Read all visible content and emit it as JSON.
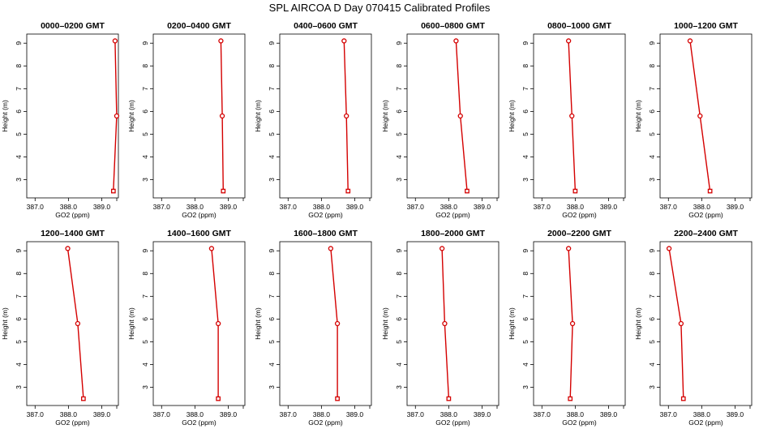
{
  "title": "SPL AIRCOA D  Day 070415  Calibrated Profiles",
  "series_color": "#d40000",
  "chart_data": [
    {
      "type": "line",
      "title": "0000–0200 GMT",
      "xlabel": "GO2 (ppm)",
      "ylabel": "Height (m)",
      "xlim": [
        386.75,
        389.5
      ],
      "ylim": [
        2.2,
        9.4
      ],
      "x_ticks": [
        387.0,
        388.0,
        389.0
      ],
      "x_tick_labels": [
        "387.0",
        "388.0",
        "389.0"
      ],
      "y_ticks": [
        3,
        4,
        5,
        6,
        7,
        8,
        9
      ],
      "y_tick_labels": [
        "3",
        "4",
        "5",
        "6",
        "7",
        "8",
        "9"
      ],
      "x": [
        389.35,
        389.45,
        389.4
      ],
      "y": [
        2.5,
        5.8,
        9.1
      ]
    },
    {
      "type": "line",
      "title": "0200–0400 GMT",
      "xlabel": "GO2 (ppm)",
      "ylabel": "Height (m)",
      "xlim": [
        386.75,
        389.5
      ],
      "ylim": [
        2.2,
        9.4
      ],
      "x_ticks": [
        387.0,
        388.0,
        389.0
      ],
      "x_tick_labels": [
        "387.0",
        "388.0",
        "389.0"
      ],
      "y_ticks": [
        3,
        4,
        5,
        6,
        7,
        8,
        9
      ],
      "y_tick_labels": [
        "3",
        "4",
        "5",
        "6",
        "7",
        "8",
        "9"
      ],
      "x": [
        388.85,
        388.82,
        388.78
      ],
      "y": [
        2.5,
        5.8,
        9.1
      ]
    },
    {
      "type": "line",
      "title": "0400–0600 GMT",
      "xlabel": "GO2 (ppm)",
      "ylabel": "Height (m)",
      "xlim": [
        386.75,
        389.5
      ],
      "ylim": [
        2.2,
        9.4
      ],
      "x_ticks": [
        387.0,
        388.0,
        389.0
      ],
      "x_tick_labels": [
        "387.0",
        "388.0",
        "389.0"
      ],
      "y_ticks": [
        3,
        4,
        5,
        6,
        7,
        8,
        9
      ],
      "y_tick_labels": [
        "3",
        "4",
        "5",
        "6",
        "7",
        "8",
        "9"
      ],
      "x": [
        388.8,
        388.75,
        388.68
      ],
      "y": [
        2.5,
        5.8,
        9.1
      ]
    },
    {
      "type": "line",
      "title": "0600–0800 GMT",
      "xlabel": "GO2 (ppm)",
      "ylabel": "Height (m)",
      "xlim": [
        386.75,
        389.5
      ],
      "ylim": [
        2.2,
        9.4
      ],
      "x_ticks": [
        387.0,
        388.0,
        389.0
      ],
      "x_tick_labels": [
        "387.0",
        "388.0",
        "389.0"
      ],
      "y_ticks": [
        3,
        4,
        5,
        6,
        7,
        8,
        9
      ],
      "y_tick_labels": [
        "3",
        "4",
        "5",
        "6",
        "7",
        "8",
        "9"
      ],
      "x": [
        388.55,
        388.35,
        388.22
      ],
      "y": [
        2.5,
        5.8,
        9.1
      ]
    },
    {
      "type": "line",
      "title": "0800–1000 GMT",
      "xlabel": "GO2 (ppm)",
      "ylabel": "Height (m)",
      "xlim": [
        386.75,
        389.5
      ],
      "ylim": [
        2.2,
        9.4
      ],
      "x_ticks": [
        387.0,
        388.0,
        389.0
      ],
      "x_tick_labels": [
        "387.0",
        "388.0",
        "389.0"
      ],
      "y_ticks": [
        3,
        4,
        5,
        6,
        7,
        8,
        9
      ],
      "y_tick_labels": [
        "3",
        "4",
        "5",
        "6",
        "7",
        "8",
        "9"
      ],
      "x": [
        388.0,
        387.9,
        387.8
      ],
      "y": [
        2.5,
        5.8,
        9.1
      ]
    },
    {
      "type": "line",
      "title": "1000–1200 GMT",
      "xlabel": "GO2 (ppm)",
      "ylabel": "Height (m)",
      "xlim": [
        386.75,
        389.5
      ],
      "ylim": [
        2.2,
        9.4
      ],
      "x_ticks": [
        387.0,
        388.0,
        389.0
      ],
      "x_tick_labels": [
        "387.0",
        "388.0",
        "389.0"
      ],
      "y_ticks": [
        3,
        4,
        5,
        6,
        7,
        8,
        9
      ],
      "y_tick_labels": [
        "3",
        "4",
        "5",
        "6",
        "7",
        "8",
        "9"
      ],
      "x": [
        388.25,
        387.95,
        387.65
      ],
      "y": [
        2.5,
        5.8,
        9.1
      ]
    },
    {
      "type": "line",
      "title": "1200–1400 GMT",
      "xlabel": "GO2 (ppm)",
      "ylabel": "Height (m)",
      "xlim": [
        386.75,
        389.5
      ],
      "ylim": [
        2.2,
        9.4
      ],
      "x_ticks": [
        387.0,
        388.0,
        389.0
      ],
      "x_tick_labels": [
        "387.0",
        "388.0",
        "389.0"
      ],
      "y_ticks": [
        3,
        4,
        5,
        6,
        7,
        8,
        9
      ],
      "y_tick_labels": [
        "3",
        "4",
        "5",
        "6",
        "7",
        "8",
        "9"
      ],
      "x": [
        388.45,
        388.28,
        387.98
      ],
      "y": [
        2.5,
        5.8,
        9.1
      ]
    },
    {
      "type": "line",
      "title": "1400–1600 GMT",
      "xlabel": "GO2 (ppm)",
      "ylabel": "Height (m)",
      "xlim": [
        386.75,
        389.5
      ],
      "ylim": [
        2.2,
        9.4
      ],
      "x_ticks": [
        387.0,
        388.0,
        389.0
      ],
      "x_tick_labels": [
        "387.0",
        "388.0",
        "389.0"
      ],
      "y_ticks": [
        3,
        4,
        5,
        6,
        7,
        8,
        9
      ],
      "y_tick_labels": [
        "3",
        "4",
        "5",
        "6",
        "7",
        "8",
        "9"
      ],
      "x": [
        388.7,
        388.7,
        388.5
      ],
      "y": [
        2.5,
        5.8,
        9.1
      ]
    },
    {
      "type": "line",
      "title": "1600–1800 GMT",
      "xlabel": "GO2 (ppm)",
      "ylabel": "Height (m)",
      "xlim": [
        386.75,
        389.5
      ],
      "ylim": [
        2.2,
        9.4
      ],
      "x_ticks": [
        387.0,
        388.0,
        389.0
      ],
      "x_tick_labels": [
        "387.0",
        "388.0",
        "389.0"
      ],
      "y_ticks": [
        3,
        4,
        5,
        6,
        7,
        8,
        9
      ],
      "y_tick_labels": [
        "3",
        "4",
        "5",
        "6",
        "7",
        "8",
        "9"
      ],
      "x": [
        388.48,
        388.48,
        388.28
      ],
      "y": [
        2.5,
        5.8,
        9.1
      ]
    },
    {
      "type": "line",
      "title": "1800–2000 GMT",
      "xlabel": "GO2 (ppm)",
      "ylabel": "Height (m)",
      "xlim": [
        386.75,
        389.5
      ],
      "ylim": [
        2.2,
        9.4
      ],
      "x_ticks": [
        387.0,
        388.0,
        389.0
      ],
      "x_tick_labels": [
        "387.0",
        "388.0",
        "389.0"
      ],
      "y_ticks": [
        3,
        4,
        5,
        6,
        7,
        8,
        9
      ],
      "y_tick_labels": [
        "3",
        "4",
        "5",
        "6",
        "7",
        "8",
        "9"
      ],
      "x": [
        388.0,
        387.88,
        387.8
      ],
      "y": [
        2.5,
        5.8,
        9.1
      ]
    },
    {
      "type": "line",
      "title": "2000–2200 GMT",
      "xlabel": "GO2 (ppm)",
      "ylabel": "Height (m)",
      "xlim": [
        386.75,
        389.5
      ],
      "ylim": [
        2.2,
        9.4
      ],
      "x_ticks": [
        387.0,
        388.0,
        389.0
      ],
      "x_tick_labels": [
        "387.0",
        "388.0",
        "389.0"
      ],
      "y_ticks": [
        3,
        4,
        5,
        6,
        7,
        8,
        9
      ],
      "y_tick_labels": [
        "3",
        "4",
        "5",
        "6",
        "7",
        "8",
        "9"
      ],
      "x": [
        387.85,
        387.92,
        387.8
      ],
      "y": [
        2.5,
        5.8,
        9.1
      ]
    },
    {
      "type": "line",
      "title": "2200–2400 GMT",
      "xlabel": "GO2 (ppm)",
      "ylabel": "Height (m)",
      "xlim": [
        386.75,
        389.5
      ],
      "ylim": [
        2.2,
        9.4
      ],
      "x_ticks": [
        387.0,
        388.0,
        389.0
      ],
      "x_tick_labels": [
        "387.0",
        "388.0",
        "389.0"
      ],
      "y_ticks": [
        3,
        4,
        5,
        6,
        7,
        8,
        9
      ],
      "y_tick_labels": [
        "3",
        "4",
        "5",
        "6",
        "7",
        "8",
        "9"
      ],
      "x": [
        387.45,
        387.38,
        387.02
      ],
      "y": [
        2.5,
        5.8,
        9.1
      ]
    }
  ]
}
